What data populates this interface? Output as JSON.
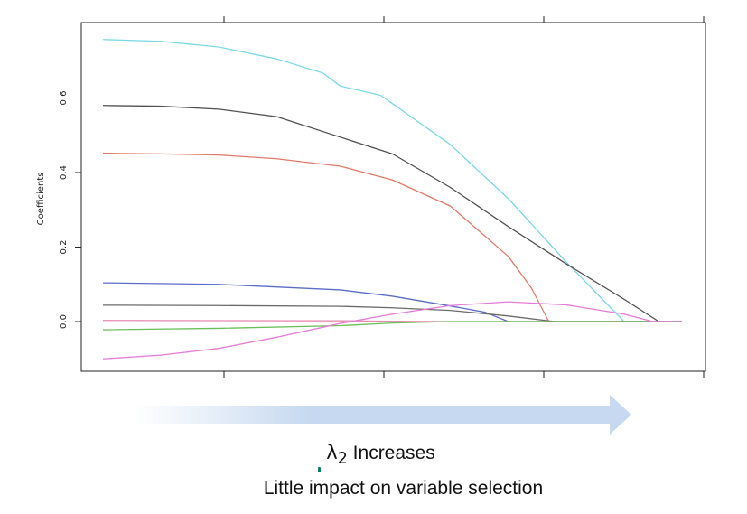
{
  "chart_data": {
    "type": "line",
    "ylabel": "Coefficients",
    "xlabel": "",
    "yticks": [
      "0.0",
      "0.2",
      "0.4",
      "0.6"
    ],
    "ylim": [
      -0.11,
      0.79
    ],
    "xlim": [
      0,
      1
    ],
    "x_ticks_labeled": false,
    "grid": false,
    "series": [
      {
        "color": "#7dd8e6",
        "points": [
          [
            0,
            0.757
          ],
          [
            0.1,
            0.752
          ],
          [
            0.2,
            0.737
          ],
          [
            0.3,
            0.705
          ],
          [
            0.38,
            0.667
          ],
          [
            0.41,
            0.632
          ],
          [
            0.48,
            0.607
          ],
          [
            0.5,
            0.585
          ],
          [
            0.6,
            0.475
          ],
          [
            0.7,
            0.33
          ],
          [
            0.8,
            0.16
          ],
          [
            0.9,
            0.0
          ],
          [
            1,
            0.0
          ]
        ]
      },
      {
        "color": "#505050",
        "points": [
          [
            0,
            0.58
          ],
          [
            0.1,
            0.578
          ],
          [
            0.2,
            0.57
          ],
          [
            0.3,
            0.55
          ],
          [
            0.41,
            0.495
          ],
          [
            0.5,
            0.45
          ],
          [
            0.6,
            0.36
          ],
          [
            0.7,
            0.255
          ],
          [
            0.8,
            0.155
          ],
          [
            0.9,
            0.06
          ],
          [
            0.96,
            0.0
          ],
          [
            1,
            0.0
          ]
        ]
      },
      {
        "color": "#e07b6a",
        "points": [
          [
            0,
            0.452
          ],
          [
            0.1,
            0.45
          ],
          [
            0.2,
            0.447
          ],
          [
            0.3,
            0.437
          ],
          [
            0.41,
            0.417
          ],
          [
            0.5,
            0.38
          ],
          [
            0.6,
            0.31
          ],
          [
            0.7,
            0.175
          ],
          [
            0.74,
            0.09
          ],
          [
            0.77,
            0.0
          ],
          [
            1,
            0.0
          ]
        ]
      },
      {
        "color": "#5c6dc8",
        "points": [
          [
            0,
            0.104
          ],
          [
            0.2,
            0.1
          ],
          [
            0.41,
            0.085
          ],
          [
            0.5,
            0.068
          ],
          [
            0.6,
            0.042
          ],
          [
            0.66,
            0.025
          ],
          [
            0.7,
            0.0
          ],
          [
            1,
            0.0
          ]
        ]
      },
      {
        "color": "#6a6a6a",
        "points": [
          [
            0,
            0.044
          ],
          [
            0.2,
            0.043
          ],
          [
            0.41,
            0.041
          ],
          [
            0.5,
            0.037
          ],
          [
            0.6,
            0.03
          ],
          [
            0.7,
            0.015
          ],
          [
            0.78,
            0.0
          ],
          [
            1,
            0.0
          ]
        ]
      },
      {
        "color": "#e788b0",
        "points": [
          [
            0,
            0.003
          ],
          [
            0.41,
            0.002
          ],
          [
            0.5,
            0.001
          ],
          [
            0.6,
            0.0
          ],
          [
            1,
            0.0
          ]
        ]
      },
      {
        "color": "#6abf5a",
        "points": [
          [
            0,
            -0.022
          ],
          [
            0.2,
            -0.018
          ],
          [
            0.41,
            -0.011
          ],
          [
            0.5,
            -0.004
          ],
          [
            0.6,
            0.0
          ],
          [
            1,
            0.0
          ]
        ]
      },
      {
        "color": "#e67bd8",
        "points": [
          [
            0,
            -0.1
          ],
          [
            0.1,
            -0.09
          ],
          [
            0.2,
            -0.072
          ],
          [
            0.3,
            -0.042
          ],
          [
            0.41,
            -0.005
          ],
          [
            0.5,
            0.02
          ],
          [
            0.6,
            0.043
          ],
          [
            0.7,
            0.053
          ],
          [
            0.8,
            0.045
          ],
          [
            0.9,
            0.02
          ],
          [
            0.95,
            0.0
          ],
          [
            1,
            0.0
          ]
        ]
      }
    ]
  },
  "colors": {
    "arrow": "#c6d9f0",
    "arrow_fade": "#ffffff",
    "dot": "#0e7a6a"
  },
  "caption": {
    "lambda_symbol": "λ",
    "lambda_subscript": "2",
    "line1_suffix": " Increases",
    "line2": "Little impact on variable selection"
  }
}
